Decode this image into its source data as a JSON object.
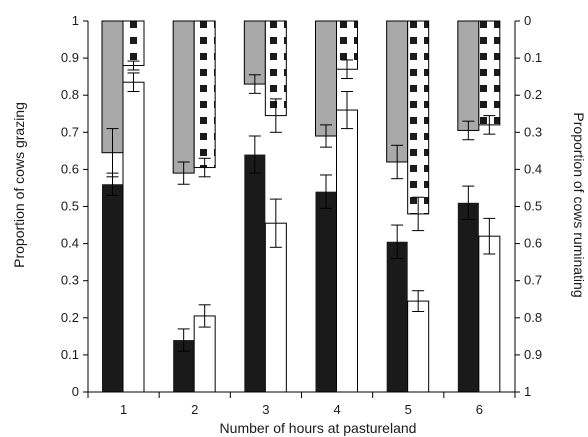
{
  "chart_data": {
    "type": "bar",
    "categories": [
      "1",
      "2",
      "3",
      "4",
      "5",
      "6"
    ],
    "xlabel": "Number of hours at pastureland",
    "ylabel": "Proportion of cows grazing",
    "ylabel_right": "Proportion of cows ruminating",
    "ylim": [
      0,
      1
    ],
    "ylim_right": [
      1,
      0
    ],
    "right_axis_inverted": true,
    "yticks_left": [
      "0",
      "0.1",
      "0.2",
      "0.3",
      "0.4",
      "0.5",
      "0.6",
      "0.7",
      "0.8",
      "0.9",
      "1"
    ],
    "yticks_right": [
      "0",
      "0.1",
      "0.2",
      "0.3",
      "0.4",
      "0.5",
      "0.6",
      "0.7",
      "0.8",
      "0.9",
      "1"
    ],
    "grid": false,
    "legend": "none",
    "series": [
      {
        "axis": "left",
        "style": "solid-black",
        "color": "#1a1a1a",
        "values": [
          0.56,
          0.14,
          0.64,
          0.54,
          0.405,
          0.51
        ],
        "errors": [
          0.03,
          0.03,
          0.05,
          0.045,
          0.045,
          0.045
        ]
      },
      {
        "axis": "left",
        "style": "white",
        "color": "#ffffff",
        "values": [
          0.835,
          0.205,
          0.455,
          0.76,
          0.245,
          0.42
        ],
        "errors": [
          0.025,
          0.03,
          0.065,
          0.05,
          0.028,
          0.048
        ]
      },
      {
        "axis": "right",
        "style": "gray",
        "color": "#a9a9a9",
        "values": [
          0.355,
          0.41,
          0.17,
          0.31,
          0.38,
          0.295
        ],
        "errors": [
          0.065,
          0.03,
          0.025,
          0.03,
          0.045,
          0.025
        ]
      },
      {
        "axis": "right",
        "style": "dotted-white",
        "color": "#ffffff",
        "values": [
          0.12,
          0.395,
          0.255,
          0.13,
          0.52,
          0.28
        ],
        "errors": [
          0.012,
          0.025,
          0.045,
          0.025,
          0.045,
          0.025
        ]
      }
    ]
  }
}
